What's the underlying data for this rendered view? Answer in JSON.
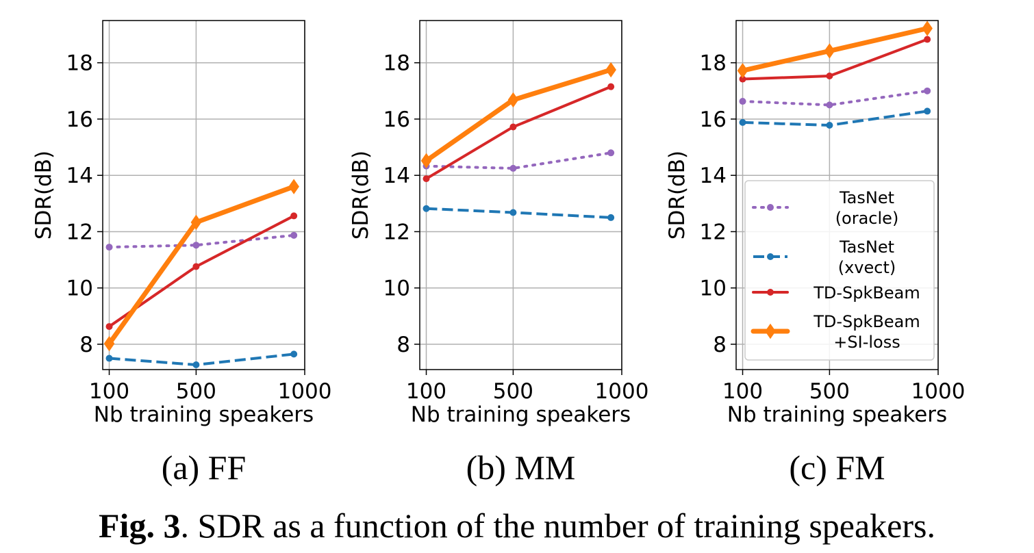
{
  "figure": {
    "caption_label": "Fig. 3",
    "caption_text": ". SDR as a function of the number of training speakers."
  },
  "colors": {
    "TasNet (oracle)": "#9467bd",
    "TasNet (xvect)": "#1f77b4",
    "TD-SpkBeam": "#d62728",
    "TD-SpkBeam +SI-loss": "#ff7f0e",
    "grid": "#b0b0b0",
    "axes": "#000000"
  },
  "legend": {
    "placement": "lower-right of panel (c)",
    "entries": [
      {
        "series": "TasNet (oracle)",
        "lines": [
          "TasNet",
          "(oracle)"
        ],
        "style": "dotted",
        "marker": "circle"
      },
      {
        "series": "TasNet (xvect)",
        "lines": [
          "TasNet",
          "(xvect)"
        ],
        "style": "dashed",
        "marker": "circle"
      },
      {
        "series": "TD-SpkBeam",
        "lines": [
          "TD-SpkBeam"
        ],
        "style": "solid",
        "marker": "circle"
      },
      {
        "series": "TD-SpkBeam +SI-loss",
        "lines": [
          "TD-SpkBeam",
          "+SI-loss"
        ],
        "style": "solid-thick",
        "marker": "diamond"
      }
    ]
  },
  "chart_data": [
    {
      "type": "line",
      "panel_id": "ff",
      "title": "(a) FF",
      "xlabel": "Nb training speakers",
      "ylabel": "SDR(dB)",
      "xlim": [
        70,
        1000
      ],
      "ylim": [
        7.1,
        19.5
      ],
      "xticks": [
        100,
        500,
        1000
      ],
      "yticks": [
        8,
        10,
        12,
        14,
        16,
        18
      ],
      "grid": true,
      "x": [
        100,
        500,
        950
      ],
      "series": [
        {
          "name": "TasNet (oracle)",
          "values": [
            11.45,
            11.52,
            11.87
          ]
        },
        {
          "name": "TasNet (xvect)",
          "values": [
            7.5,
            7.27,
            7.65
          ]
        },
        {
          "name": "TD-SpkBeam",
          "values": [
            8.63,
            10.76,
            12.56
          ]
        },
        {
          "name": "TD-SpkBeam +SI-loss",
          "values": [
            8.02,
            12.33,
            13.6
          ]
        }
      ]
    },
    {
      "type": "line",
      "panel_id": "mm",
      "title": "(b) MM",
      "xlabel": "Nb training speakers",
      "ylabel": "SDR(dB)",
      "xlim": [
        70,
        1000
      ],
      "ylim": [
        7.1,
        19.5
      ],
      "xticks": [
        100,
        500,
        1000
      ],
      "yticks": [
        8,
        10,
        12,
        14,
        16,
        18
      ],
      "grid": true,
      "x": [
        100,
        500,
        950
      ],
      "series": [
        {
          "name": "TasNet (oracle)",
          "values": [
            14.33,
            14.25,
            14.8
          ]
        },
        {
          "name": "TasNet (xvect)",
          "values": [
            12.82,
            12.68,
            12.5
          ]
        },
        {
          "name": "TD-SpkBeam",
          "values": [
            13.88,
            15.72,
            17.15
          ]
        },
        {
          "name": "TD-SpkBeam +SI-loss",
          "values": [
            14.52,
            16.68,
            17.75
          ]
        }
      ]
    },
    {
      "type": "line",
      "panel_id": "fm",
      "title": "(c) FM",
      "xlabel": "Nb training speakers",
      "ylabel": "SDR(dB)",
      "xlim": [
        70,
        1000
      ],
      "ylim": [
        7.1,
        19.5
      ],
      "xticks": [
        100,
        500,
        1000
      ],
      "yticks": [
        8,
        10,
        12,
        14,
        16,
        18
      ],
      "grid": true,
      "x": [
        100,
        500,
        950
      ],
      "series": [
        {
          "name": "TasNet (oracle)",
          "values": [
            16.63,
            16.5,
            17.0
          ]
        },
        {
          "name": "TasNet (xvect)",
          "values": [
            15.88,
            15.78,
            16.28
          ]
        },
        {
          "name": "TD-SpkBeam",
          "values": [
            17.42,
            17.53,
            18.83
          ]
        },
        {
          "name": "TD-SpkBeam +SI-loss",
          "values": [
            17.72,
            18.42,
            19.22
          ]
        }
      ]
    }
  ]
}
